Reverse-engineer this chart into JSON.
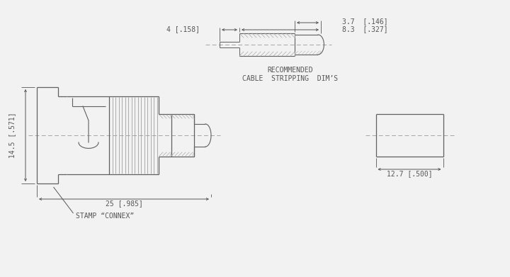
{
  "bg_color": "#f2f2f2",
  "line_color": "#606060",
  "dim_color": "#555555",
  "font_size": 7.0,
  "annotations": {
    "dim_37": "3.7  [.146]",
    "dim_83": "8.3  [.327]",
    "dim_4": "4 [.158]",
    "dim_145": "14.5 [.571]",
    "dim_25": "25 [.985]",
    "dim_127": "12.7 [.500]",
    "stamp": "STAMP “CONNEX”",
    "recommended_line1": "RECOMMENDED",
    "recommended_line2": "CABLE  STRIPPING  DIM’S"
  }
}
